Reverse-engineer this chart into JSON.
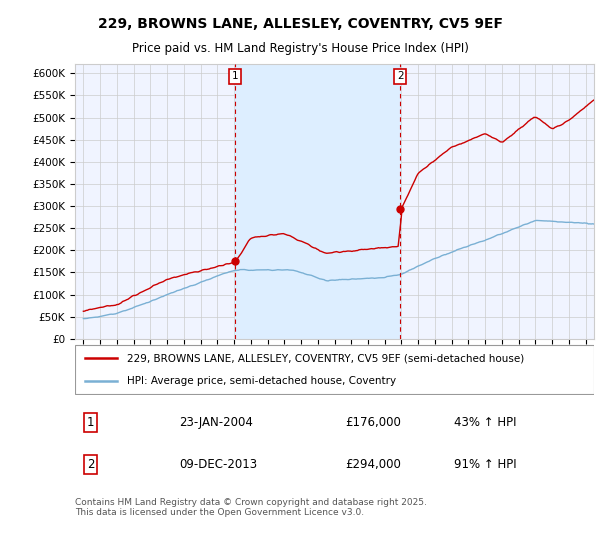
{
  "title": "229, BROWNS LANE, ALLESLEY, COVENTRY, CV5 9EF",
  "subtitle": "Price paid vs. HM Land Registry's House Price Index (HPI)",
  "legend_line1": "229, BROWNS LANE, ALLESLEY, COVENTRY, CV5 9EF (semi-detached house)",
  "legend_line2": "HPI: Average price, semi-detached house, Coventry",
  "footer": "Contains HM Land Registry data © Crown copyright and database right 2025.\nThis data is licensed under the Open Government Licence v3.0.",
  "annotation1_date": "23-JAN-2004",
  "annotation1_price": "£176,000",
  "annotation1_hpi": "43% ↑ HPI",
  "annotation2_date": "09-DEC-2013",
  "annotation2_price": "£294,000",
  "annotation2_hpi": "91% ↑ HPI",
  "sale1_x": 2004.06,
  "sale1_y": 176000,
  "sale2_x": 2013.92,
  "sale2_y": 294000,
  "ylim": [
    0,
    620000
  ],
  "xlim": [
    1994.5,
    2025.5
  ],
  "red_color": "#cc0000",
  "blue_color": "#7ab0d4",
  "shade_color": "#ddeeff",
  "background_color": "#ffffff",
  "plot_bg_color": "#f0f4ff",
  "grid_color": "#cccccc",
  "title_fontsize": 10,
  "subtitle_fontsize": 8.5,
  "axis_fontsize": 7.5,
  "legend_fontsize": 7.5,
  "footer_fontsize": 6.5
}
